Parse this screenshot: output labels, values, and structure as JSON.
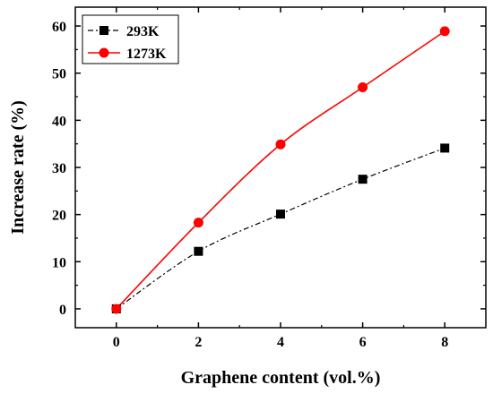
{
  "chart_data": {
    "type": "line",
    "title": "",
    "xlabel": "Graphene content (vol.%)",
    "ylabel": "Increase rate (%)",
    "xlim": [
      -1,
      9
    ],
    "ylim": [
      -4,
      64
    ],
    "xticks": [
      0,
      2,
      4,
      6,
      8
    ],
    "yticks": [
      0,
      10,
      20,
      30,
      40,
      50,
      60
    ],
    "x": [
      0,
      2,
      4,
      6,
      8
    ],
    "series": [
      {
        "name": "293K",
        "values": [
          0,
          12.2,
          20.1,
          27.5,
          34.1
        ],
        "color": "#000000",
        "marker": "square",
        "line_style": "dash-dot"
      },
      {
        "name": "1273K",
        "values": [
          0,
          18.3,
          34.9,
          47.0,
          58.9
        ],
        "color": "#ff0000",
        "marker": "circle",
        "line_style": "solid"
      }
    ],
    "legend": "top-left",
    "grid": false
  }
}
